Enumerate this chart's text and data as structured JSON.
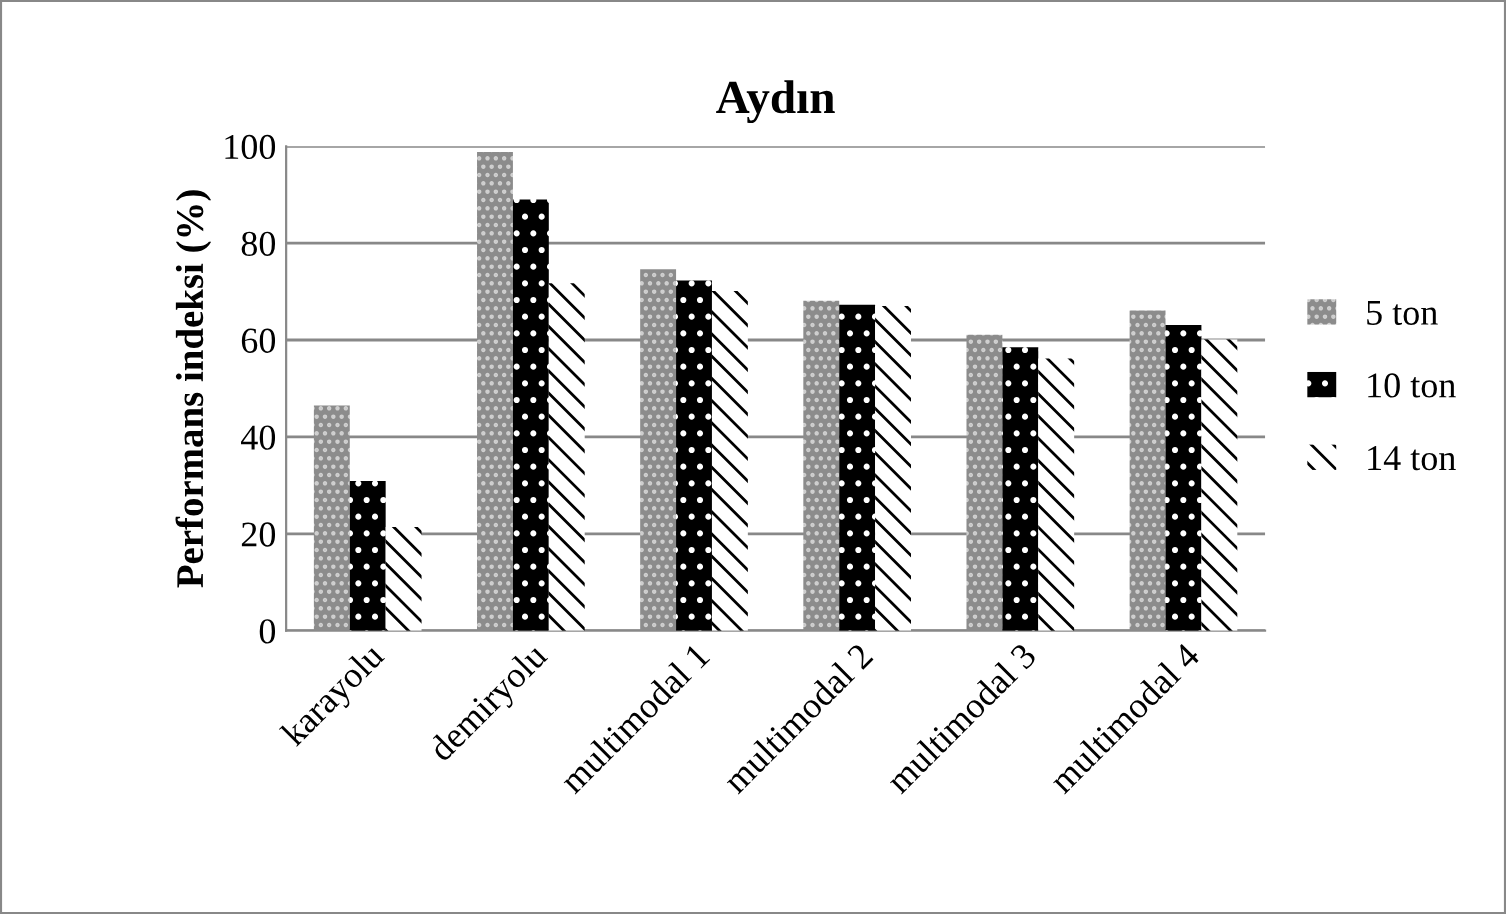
{
  "chart_data": {
    "type": "bar",
    "title": "Aydın",
    "ylabel": "Performans indeksi (%)",
    "categories": [
      "karayolu",
      "demiryolu",
      "multimodal 1",
      "multimodal 2",
      "multimodal 3",
      "multimodal 4"
    ],
    "series": [
      {
        "name": "5 ton",
        "color": "#8c8c8c",
        "values": [
          46.5,
          98.8,
          74.6,
          68.1,
          61.1,
          66.1
        ]
      },
      {
        "name": "10 ton",
        "color": "#000000",
        "values": [
          30.9,
          89,
          72.3,
          67.3,
          58.5,
          63.1
        ]
      },
      {
        "name": "14 ton",
        "color": "#ffffff",
        "values": [
          21.4,
          71.7,
          70.1,
          67,
          56.2,
          60.1
        ]
      }
    ],
    "ylim": [
      0,
      100
    ],
    "yticks": [
      0,
      20,
      40,
      60,
      80,
      100
    ],
    "grid": "y",
    "legend": "right"
  }
}
